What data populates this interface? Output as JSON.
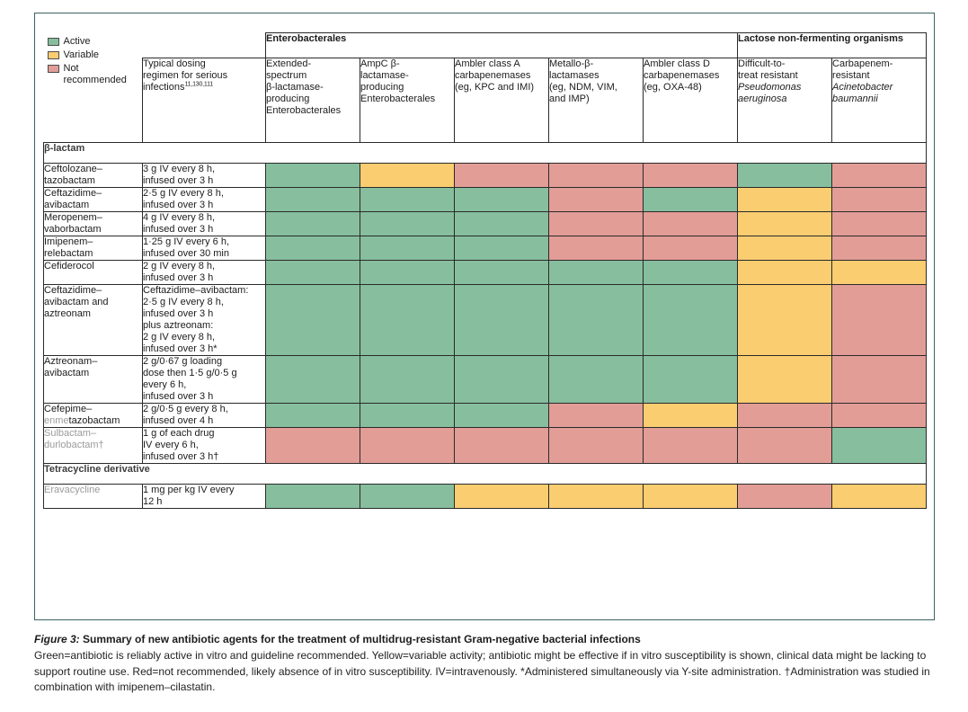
{
  "colors": {
    "active": "#87BE9E",
    "variable": "#FACD71",
    "not_recommended": "#E29D97",
    "frame_border": "#3A6361",
    "grid_line": "#2a2a2a",
    "muted_text": "#9b9b9b"
  },
  "legend": {
    "items": [
      {
        "label": "Active",
        "status": "active"
      },
      {
        "label": "Variable",
        "status": "variable"
      },
      {
        "label": "Not recommended",
        "status": "not_recommended"
      }
    ]
  },
  "header": {
    "groups": [
      {
        "label": "Enterobacterales"
      },
      {
        "label": "Lactose non-fermenting organisms"
      }
    ],
    "dosing_header": {
      "text": "Typical dosing\nregimen for serious\ninfections",
      "refs": "11,130,111"
    },
    "columns": [
      {
        "text": "Extended-\nspectrum\nβ-lactamase-\nproducing\nEnterobacterales"
      },
      {
        "text": "AmpC β-\nlactamase-\nproducing\nEnterobacterales"
      },
      {
        "text": "Ambler class A\ncarbapenemases\n(eg, KPC and IMI)"
      },
      {
        "text": "Metallo-β-\nlactamases\n(eg, NDM, VIM,\nand IMP)"
      },
      {
        "text": "Ambler class D\ncarbapenemases\n(eg, OXA-48)"
      },
      {
        "text": "Difficult-to-\ntreat resistant",
        "italic": "Pseudomonas\naeruginosa"
      },
      {
        "text": "Carbapenem-\nresistant",
        "italic": "Acinetobacter\nbaumannii"
      }
    ]
  },
  "rows": [
    {
      "type": "section",
      "label": "β-lactam"
    },
    {
      "type": "drug",
      "name_parts": [
        {
          "text": "Ceftolozane–\ntazobactam",
          "muted": false
        }
      ],
      "dose": "3 g IV every 8 h,\ninfused over 3 h",
      "cells": [
        "active",
        "variable",
        "not_recommended",
        "not_recommended",
        "not_recommended",
        "active",
        "not_recommended"
      ]
    },
    {
      "type": "drug",
      "name_parts": [
        {
          "text": "Ceftazidime–\navibactam",
          "muted": false
        }
      ],
      "dose": "2·5 g IV every 8 h,\ninfused over 3 h",
      "cells": [
        "active",
        "active",
        "active",
        "not_recommended",
        "active",
        "variable",
        "not_recommended"
      ]
    },
    {
      "type": "drug",
      "name_parts": [
        {
          "text": "Meropenem–\nvaborbactam",
          "muted": false
        }
      ],
      "dose": "4 g IV every 8 h,\ninfused over 3 h",
      "cells": [
        "active",
        "active",
        "active",
        "not_recommended",
        "not_recommended",
        "variable",
        "not_recommended"
      ]
    },
    {
      "type": "drug",
      "name_parts": [
        {
          "text": "Imipenem–\nrelebactam",
          "muted": false
        }
      ],
      "dose": "1·25 g IV every 6 h,\ninfused over 30 min",
      "cells": [
        "active",
        "active",
        "active",
        "not_recommended",
        "not_recommended",
        "variable",
        "not_recommended"
      ]
    },
    {
      "type": "drug",
      "name_parts": [
        {
          "text": "Cefiderocol",
          "muted": false
        }
      ],
      "dose": "2 g IV every 8 h,\ninfused over 3 h",
      "cells": [
        "active",
        "active",
        "active",
        "active",
        "active",
        "variable",
        "variable"
      ]
    },
    {
      "type": "drug",
      "name_parts": [
        {
          "text": "Ceftazidime–\navibactam and\naztreonam",
          "muted": false
        }
      ],
      "dose": "Ceftazidime–avibactam:\n2·5 g IV every 8 h,\ninfused over 3 h\nplus aztreonam:\n2 g IV every 8 h,\ninfused over 3 h*",
      "cells": [
        "active",
        "active",
        "active",
        "active",
        "active",
        "variable",
        "not_recommended"
      ]
    },
    {
      "type": "drug",
      "name_parts": [
        {
          "text": "Aztreonam–\navibactam",
          "muted": false
        }
      ],
      "dose": "2 g/0·67 g loading\ndose then 1·5 g/0·5 g\nevery 6 h,\ninfused over 3 h",
      "cells": [
        "active",
        "active",
        "active",
        "active",
        "active",
        "variable",
        "not_recommended"
      ]
    },
    {
      "type": "drug",
      "name_parts": [
        {
          "text": "Cefepime–\n",
          "muted": false
        },
        {
          "text": "enme",
          "muted": true
        },
        {
          "text": "tazobactam",
          "muted": false
        }
      ],
      "dose": "2 g/0·5 g every 8 h,\ninfused over 4 h",
      "cells": [
        "active",
        "active",
        "active",
        "not_recommended",
        "variable",
        "not_recommended",
        "not_recommended"
      ]
    },
    {
      "type": "drug",
      "name_parts": [
        {
          "text": "Sulbactam–\ndurlobactam†",
          "muted": true
        }
      ],
      "dose": "1 g of each drug\nIV every 6 h,\ninfused over 3 h†",
      "cells": [
        "not_recommended",
        "not_recommended",
        "not_recommended",
        "not_recommended",
        "not_recommended",
        "not_recommended",
        "active"
      ]
    },
    {
      "type": "section",
      "label": "Tetracycline derivative"
    },
    {
      "type": "drug",
      "name_parts": [
        {
          "text": "Eravacycline",
          "muted": true
        }
      ],
      "dose": "1 mg per kg IV every\n12 h",
      "cells": [
        "active",
        "active",
        "variable",
        "variable",
        "variable",
        "not_recommended",
        "variable"
      ]
    }
  ],
  "caption": {
    "figure_label": "Figure 3:",
    "title": "Summary of new antibiotic agents for the treatment of multidrug-resistant Gram-negative bacterial infections",
    "body": "Green=antibiotic is reliably active in vitro and guideline recommended. Yellow=variable activity; antibiotic might be effective if in vitro susceptibility is shown, clinical data might be lacking to support routine use. Red=not recommended, likely absence of in vitro susceptibility. IV=intravenously. *Administered simultaneously via Y-site administration. †Administration was studied in combination with imipenem–cilastatin."
  }
}
